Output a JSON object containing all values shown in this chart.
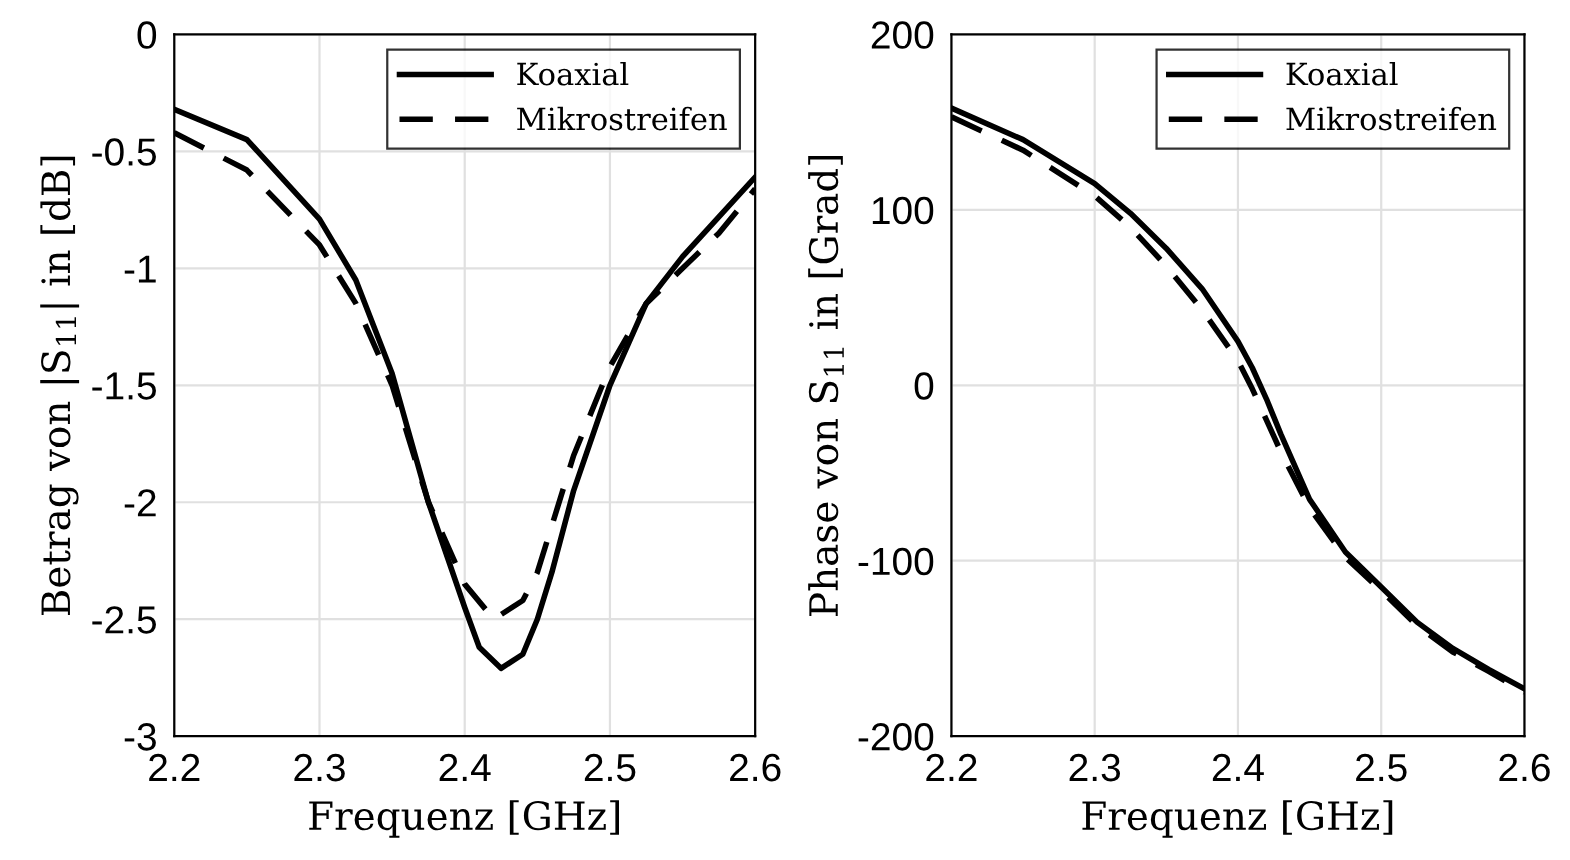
{
  "chart_data": [
    {
      "type": "line",
      "xlabel": "Frequenz [GHz]",
      "ylabel": "Betrag von |S$_{11}$| in [dB]",
      "xlim": [
        2.2,
        2.6
      ],
      "xticks": [
        2.2,
        2.3,
        2.4,
        2.5,
        2.6
      ],
      "ylim": [
        -3,
        0
      ],
      "yticks": [
        -3,
        -2.5,
        -2,
        -1.5,
        -1,
        -0.5,
        0
      ],
      "grid": true,
      "legend": "top right",
      "marker": "none",
      "series": [
        {
          "name": "Koaxial",
          "color": "#000000",
          "line_style": "solid",
          "x": [
            2.2,
            2.25,
            2.3,
            2.325,
            2.35,
            2.375,
            2.4,
            2.41,
            2.425,
            2.44,
            2.45,
            2.46,
            2.475,
            2.5,
            2.525,
            2.55,
            2.575,
            2.6
          ],
          "values": [
            -0.32,
            -0.45,
            -0.79,
            -1.05,
            -1.45,
            -2.0,
            -2.45,
            -2.62,
            -2.71,
            -2.65,
            -2.5,
            -2.3,
            -1.95,
            -1.5,
            -1.15,
            -0.95,
            -0.78,
            -0.61
          ]
        },
        {
          "name": "Mikrostreifen",
          "color": "#000000",
          "line_style": "dashed",
          "x": [
            2.2,
            2.25,
            2.3,
            2.325,
            2.35,
            2.375,
            2.4,
            2.42,
            2.44,
            2.45,
            2.46,
            2.475,
            2.5,
            2.525,
            2.55,
            2.575,
            2.6
          ],
          "values": [
            -0.42,
            -0.58,
            -0.9,
            -1.15,
            -1.5,
            -2.0,
            -2.35,
            -2.5,
            -2.42,
            -2.3,
            -2.1,
            -1.8,
            -1.42,
            -1.15,
            -1.0,
            -0.85,
            -0.66
          ]
        }
      ]
    },
    {
      "type": "line",
      "xlabel": "Frequenz [GHz]",
      "ylabel": "Phase von S$_{11}$ in [Grad]",
      "xlim": [
        2.2,
        2.6
      ],
      "xticks": [
        2.2,
        2.3,
        2.4,
        2.5,
        2.6
      ],
      "ylim": [
        -200,
        200
      ],
      "yticks": [
        -200,
        -100,
        0,
        100,
        200
      ],
      "grid": true,
      "legend": "top right",
      "marker": "none",
      "series": [
        {
          "name": "Koaxial",
          "color": "#000000",
          "line_style": "solid",
          "x": [
            2.2,
            2.25,
            2.3,
            2.325,
            2.35,
            2.375,
            2.4,
            2.41,
            2.42,
            2.43,
            2.45,
            2.475,
            2.5,
            2.525,
            2.55,
            2.575,
            2.6
          ],
          "values": [
            158,
            140,
            115,
            98,
            78,
            55,
            25,
            10,
            -8,
            -28,
            -65,
            -95,
            -115,
            -135,
            -150,
            -162,
            -173
          ]
        },
        {
          "name": "Mikrostreifen",
          "color": "#000000",
          "line_style": "dashed",
          "x": [
            2.2,
            2.25,
            2.3,
            2.325,
            2.35,
            2.375,
            2.4,
            2.41,
            2.42,
            2.43,
            2.45,
            2.475,
            2.5,
            2.525,
            2.55,
            2.575,
            2.6
          ],
          "values": [
            153,
            134,
            108,
            90,
            68,
            43,
            14,
            -2,
            -20,
            -38,
            -70,
            -98,
            -117,
            -137,
            -152,
            -163,
            -175
          ]
        }
      ]
    }
  ]
}
